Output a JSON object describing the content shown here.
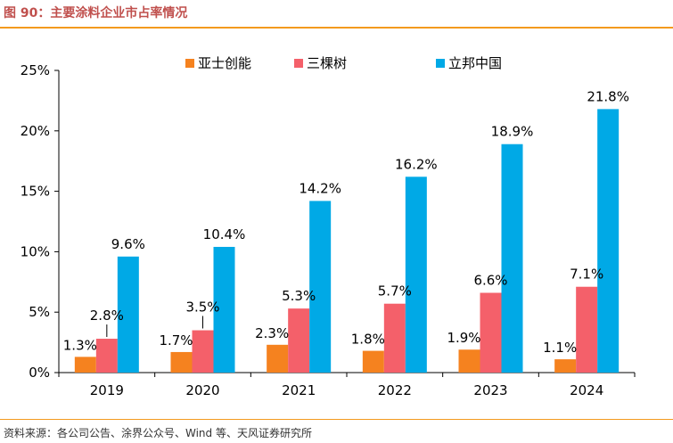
{
  "figure": {
    "title": "图 90：主要涂料企业市占率情况",
    "source": "资料来源：各公司公告、涂界公众号、Wind 等、天风证券研究所"
  },
  "chart_data": {
    "type": "bar",
    "categories": [
      "2019",
      "2020",
      "2021",
      "2022",
      "2023",
      "2024"
    ],
    "series": [
      {
        "name": "亚士创能",
        "color": "#f5821f",
        "values": [
          1.3,
          1.7,
          2.3,
          1.8,
          1.9,
          1.1
        ],
        "labels": [
          "1.3%",
          "1.7%",
          "2.3%",
          "1.8%",
          "1.9%",
          "1.1%"
        ]
      },
      {
        "name": "三棵树",
        "color": "#f4606a",
        "values": [
          2.8,
          3.5,
          5.3,
          5.7,
          6.6,
          7.1
        ],
        "labels": [
          "2.8%",
          "3.5%",
          "5.3%",
          "5.7%",
          "6.6%",
          "7.1%"
        ]
      },
      {
        "name": "立邦中国",
        "color": "#00a9e6",
        "values": [
          9.6,
          10.4,
          14.2,
          16.2,
          18.9,
          21.8
        ],
        "labels": [
          "9.6%",
          "10.4%",
          "14.2%",
          "16.2%",
          "18.9%",
          "21.8%"
        ]
      }
    ],
    "yticks": [
      "0%",
      "5%",
      "10%",
      "15%",
      "20%",
      "25%"
    ],
    "ylim": [
      0,
      25
    ],
    "ylabel": "",
    "xlabel": "",
    "legend": "top-center",
    "grid": false
  }
}
